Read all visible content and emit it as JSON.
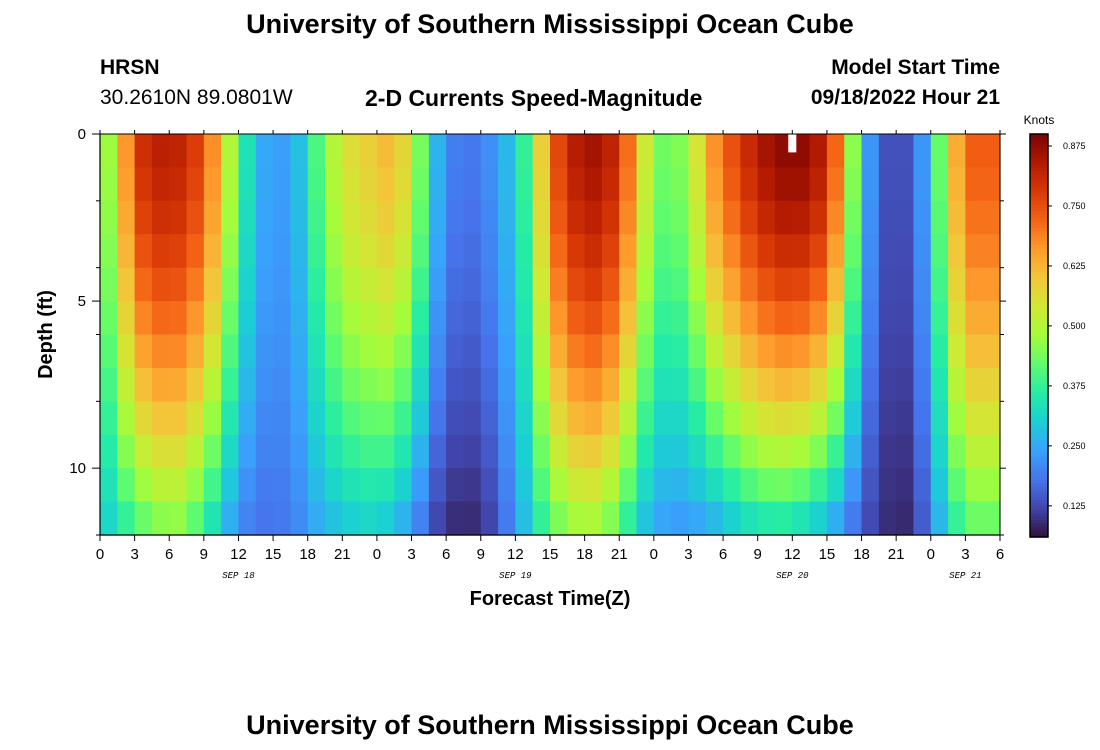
{
  "header": {
    "title": "University of Southern Mississippi Ocean Cube",
    "station": "HRSN",
    "coords": "30.2610N  89.0801W",
    "subtitle": "2-D Currents Speed-Magnitude",
    "model_start_label": "Model Start Time",
    "model_start_value": "09/18/2022 Hour 21"
  },
  "footer": {
    "title": "University of Southern Mississippi Ocean Cube"
  },
  "colors": {
    "background": "#ffffff",
    "axis": "#000000",
    "colormap": [
      "#30123b",
      "#4145ab",
      "#4675ed",
      "#39a2fc",
      "#1bcfd4",
      "#24eca6",
      "#61fc6c",
      "#a4fc3b",
      "#d1e834",
      "#f3c63a",
      "#fe9b2d",
      "#f36315",
      "#d93806",
      "#b11901",
      "#7a0402"
    ]
  },
  "chart_data": {
    "type": "heatmap",
    "title": "2-D Currents Speed-Magnitude",
    "xlabel": "Forecast Time(Z)",
    "ylabel": "Depth (ft)",
    "x_hours_from_start": [
      0,
      3,
      6,
      9,
      12,
      15,
      18,
      21,
      24,
      27,
      30,
      33,
      36,
      39,
      42,
      45,
      48,
      51,
      54,
      57,
      60,
      63,
      66,
      69,
      72,
      75,
      78
    ],
    "x_tick_labels": [
      "0",
      "3",
      "6",
      "9",
      "12",
      "15",
      "18",
      "21",
      "0",
      "3",
      "6",
      "9",
      "12",
      "15",
      "18",
      "21",
      "0",
      "3",
      "6",
      "9",
      "12",
      "15",
      "18",
      "21",
      "0",
      "3",
      "6"
    ],
    "x_range_hours": [
      0,
      78
    ],
    "date_labels": [
      {
        "label": "SEP 18",
        "hour": 12
      },
      {
        "label": "SEP 19",
        "hour": 36
      },
      {
        "label": "SEP 20",
        "hour": 60
      },
      {
        "label": "SEP 21",
        "hour": 75
      }
    ],
    "y_range_ft": [
      0,
      12
    ],
    "y_tick_labels": [
      {
        "label": "0",
        "value": 0
      },
      {
        "label": "5",
        "value": 5
      },
      {
        "label": "10",
        "value": 10
      }
    ],
    "y_minor_ticks": [
      2,
      4,
      6,
      8,
      12
    ],
    "colorbar": {
      "unit": "Knots",
      "range": [
        0.06,
        0.9
      ],
      "tick_labels": [
        "0.125",
        "0.250",
        "0.375",
        "0.500",
        "0.625",
        "0.750",
        "0.875"
      ],
      "tick_values": [
        0.125,
        0.25,
        0.375,
        0.5,
        0.625,
        0.75,
        0.875
      ]
    },
    "grid_hours_per_column": 1.5,
    "depth_levels_ft": [
      0.5,
      1.5,
      2.5,
      3.5,
      4.5,
      5.5,
      6.5,
      7.5,
      8.5,
      9.5,
      10.5,
      11.5
    ],
    "speed_anchors": [
      {
        "hour": 0.0,
        "surface": 0.4,
        "bottom": 0.28
      },
      {
        "hour": 1.5,
        "surface": 0.55,
        "bottom": 0.33
      },
      {
        "hour": 3.0,
        "surface": 0.78,
        "bottom": 0.38
      },
      {
        "hour": 5.0,
        "surface": 0.83,
        "bottom": 0.43
      },
      {
        "hour": 7.0,
        "surface": 0.82,
        "bottom": 0.44
      },
      {
        "hour": 9.0,
        "surface": 0.75,
        "bottom": 0.36
      },
      {
        "hour": 10.5,
        "surface": 0.6,
        "bottom": 0.28
      },
      {
        "hour": 12.0,
        "surface": 0.4,
        "bottom": 0.2
      },
      {
        "hour": 13.5,
        "surface": 0.28,
        "bottom": 0.18
      },
      {
        "hour": 15.0,
        "surface": 0.22,
        "bottom": 0.17
      },
      {
        "hour": 17.0,
        "surface": 0.26,
        "bottom": 0.2
      },
      {
        "hour": 19.0,
        "surface": 0.42,
        "bottom": 0.25
      },
      {
        "hour": 21.0,
        "surface": 0.55,
        "bottom": 0.28
      },
      {
        "hour": 23.0,
        "surface": 0.58,
        "bottom": 0.3
      },
      {
        "hour": 25.0,
        "surface": 0.62,
        "bottom": 0.28
      },
      {
        "hour": 27.0,
        "surface": 0.55,
        "bottom": 0.22
      },
      {
        "hour": 28.5,
        "surface": 0.33,
        "bottom": 0.14
      },
      {
        "hour": 30.0,
        "surface": 0.2,
        "bottom": 0.09
      },
      {
        "hour": 32.0,
        "surface": 0.18,
        "bottom": 0.08
      },
      {
        "hour": 34.0,
        "surface": 0.22,
        "bottom": 0.12
      },
      {
        "hour": 36.0,
        "surface": 0.3,
        "bottom": 0.22
      },
      {
        "hour": 37.5,
        "surface": 0.45,
        "bottom": 0.32
      },
      {
        "hour": 39.0,
        "surface": 0.72,
        "bottom": 0.4
      },
      {
        "hour": 41.0,
        "surface": 0.83,
        "bottom": 0.46
      },
      {
        "hour": 43.0,
        "surface": 0.86,
        "bottom": 0.47
      },
      {
        "hour": 45.0,
        "surface": 0.8,
        "bottom": 0.4
      },
      {
        "hour": 46.5,
        "surface": 0.62,
        "bottom": 0.3
      },
      {
        "hour": 48.0,
        "surface": 0.45,
        "bottom": 0.24
      },
      {
        "hour": 49.5,
        "surface": 0.42,
        "bottom": 0.22
      },
      {
        "hour": 51.0,
        "surface": 0.48,
        "bottom": 0.22
      },
      {
        "hour": 53.0,
        "surface": 0.66,
        "bottom": 0.24
      },
      {
        "hour": 55.0,
        "surface": 0.76,
        "bottom": 0.28
      },
      {
        "hour": 57.0,
        "surface": 0.84,
        "bottom": 0.32
      },
      {
        "hour": 59.0,
        "surface": 0.88,
        "bottom": 0.33
      },
      {
        "hour": 61.0,
        "surface": 0.88,
        "bottom": 0.3
      },
      {
        "hour": 63.0,
        "surface": 0.82,
        "bottom": 0.25
      },
      {
        "hour": 64.5,
        "surface": 0.62,
        "bottom": 0.2
      },
      {
        "hour": 66.0,
        "surface": 0.3,
        "bottom": 0.14
      },
      {
        "hour": 67.5,
        "surface": 0.15,
        "bottom": 0.1
      },
      {
        "hour": 69.0,
        "surface": 0.12,
        "bottom": 0.08
      },
      {
        "hour": 70.5,
        "surface": 0.15,
        "bottom": 0.09
      },
      {
        "hour": 72.0,
        "surface": 0.3,
        "bottom": 0.2
      },
      {
        "hour": 73.5,
        "surface": 0.55,
        "bottom": 0.32
      },
      {
        "hour": 75.0,
        "surface": 0.72,
        "bottom": 0.4
      },
      {
        "hour": 76.5,
        "surface": 0.74,
        "bottom": 0.42
      },
      {
        "hour": 78.0,
        "surface": 0.72,
        "bottom": 0.4
      }
    ],
    "depth_profile_exponent": 1.6,
    "missing_cell": {
      "hour": 60.0,
      "depth_ft": 0.5
    }
  }
}
